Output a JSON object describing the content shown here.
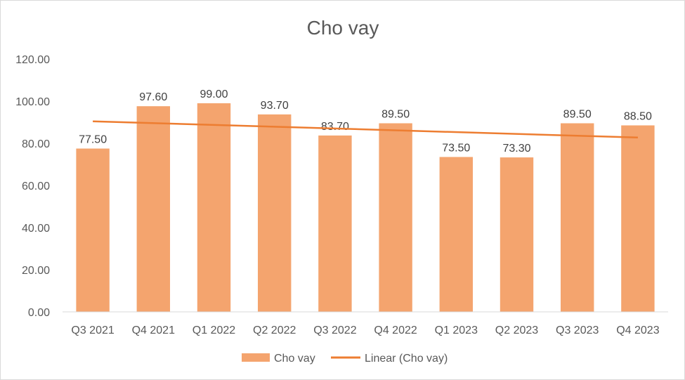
{
  "chart_data": {
    "type": "bar",
    "title": "Cho vay",
    "categories": [
      "Q3 2021",
      "Q4 2021",
      "Q1 2022",
      "Q2 2022",
      "Q3 2022",
      "Q4 2022",
      "Q1 2023",
      "Q2 2023",
      "Q3 2023",
      "Q4 2023"
    ],
    "series": [
      {
        "name": "Cho vay",
        "values": [
          77.5,
          97.6,
          99.0,
          93.7,
          83.7,
          89.5,
          73.5,
          73.3,
          89.5,
          88.5
        ],
        "labels": [
          "77.50",
          "97.60",
          "99.00",
          "93.70",
          "83.70",
          "89.50",
          "73.50",
          "73.30",
          "89.50",
          "88.50"
        ],
        "color": "#f4a46e"
      }
    ],
    "trendline": {
      "name": "Linear (Cho vay)",
      "type": "linear",
      "color": "#ed7d31"
    },
    "ylim": [
      0,
      120
    ],
    "yticks": [
      "0.00",
      "20.00",
      "40.00",
      "60.00",
      "80.00",
      "100.00",
      "120.00"
    ],
    "grid": false,
    "legend": "bottom"
  }
}
